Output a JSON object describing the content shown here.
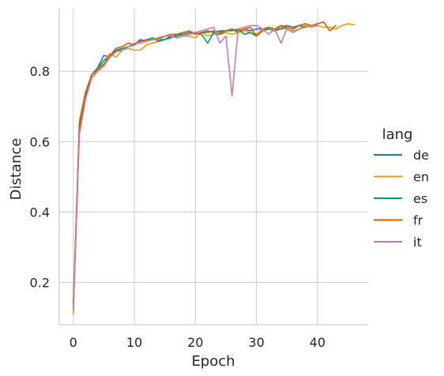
{
  "chart_data": {
    "type": "line",
    "xlabel": "Epoch",
    "ylabel": "Distance",
    "xlim": [
      -2.3,
      48.3
    ],
    "ylim": [
      0.08,
      0.98
    ],
    "xticks": [
      0,
      10,
      20,
      30,
      40
    ],
    "yticks": [
      0.2,
      0.4,
      0.6,
      0.8
    ],
    "grid": true,
    "legend": {
      "title": "lang",
      "placement": "right"
    },
    "series": [
      {
        "name": "de",
        "color": "#1f77b4",
        "x": [
          0,
          1,
          2,
          3,
          4,
          5,
          6,
          7,
          8,
          9,
          10,
          11,
          12,
          13,
          14,
          15,
          16,
          17,
          18,
          19,
          20,
          21,
          22,
          23,
          24,
          25,
          26,
          27,
          28,
          29,
          30,
          31,
          32,
          33,
          34,
          35,
          36,
          37,
          38,
          39,
          40
        ],
        "y": [
          0.12,
          0.63,
          0.73,
          0.79,
          0.81,
          0.845,
          0.84,
          0.86,
          0.86,
          0.87,
          0.875,
          0.89,
          0.885,
          0.89,
          0.89,
          0.89,
          0.895,
          0.905,
          0.905,
          0.91,
          0.905,
          0.91,
          0.915,
          0.91,
          0.915,
          0.915,
          0.92,
          0.91,
          0.92,
          0.915,
          0.92,
          0.92,
          0.925,
          0.92,
          0.925,
          0.93,
          0.925,
          0.93,
          0.925,
          0.93,
          0.93
        ]
      },
      {
        "name": "en",
        "color": "#e69f00",
        "x": [
          0,
          1,
          2,
          3,
          4,
          5,
          6,
          7,
          8,
          9,
          10,
          11,
          12,
          13,
          14,
          15,
          16,
          17,
          18,
          19,
          20,
          21,
          22,
          23,
          24,
          25,
          26,
          27,
          28,
          29,
          30,
          31,
          32,
          33,
          34,
          35,
          36,
          37,
          38,
          39,
          40,
          41,
          42,
          43,
          44,
          45,
          46
        ],
        "y": [
          0.11,
          0.66,
          0.74,
          0.78,
          0.805,
          0.83,
          0.85,
          0.84,
          0.86,
          0.865,
          0.86,
          0.86,
          0.875,
          0.88,
          0.885,
          0.89,
          0.9,
          0.895,
          0.9,
          0.9,
          0.895,
          0.91,
          0.9,
          0.905,
          0.905,
          0.91,
          0.905,
          0.91,
          0.915,
          0.91,
          0.905,
          0.92,
          0.92,
          0.915,
          0.925,
          0.92,
          0.915,
          0.92,
          0.93,
          0.925,
          0.93,
          0.925,
          0.925,
          0.92,
          0.93,
          0.935,
          0.932
        ]
      },
      {
        "name": "es",
        "color": "#009e73",
        "x": [
          0,
          1,
          2,
          3,
          4,
          5,
          6,
          7,
          8,
          9,
          10,
          11,
          12,
          13,
          14,
          15,
          16,
          17,
          18,
          19,
          20,
          21,
          22,
          23,
          24,
          25,
          26,
          27,
          28,
          29,
          30,
          31,
          32,
          33,
          34,
          35,
          36,
          37,
          38,
          39,
          40
        ],
        "y": [
          0.13,
          0.64,
          0.73,
          0.79,
          0.81,
          0.83,
          0.84,
          0.86,
          0.865,
          0.87,
          0.875,
          0.885,
          0.89,
          0.895,
          0.885,
          0.89,
          0.9,
          0.9,
          0.905,
          0.91,
          0.91,
          0.905,
          0.88,
          0.91,
          0.905,
          0.915,
          0.915,
          0.92,
          0.905,
          0.91,
          0.9,
          0.915,
          0.92,
          0.915,
          0.92,
          0.925,
          0.92,
          0.93,
          0.925,
          0.93,
          0.93
        ]
      },
      {
        "name": "fr",
        "color": "#d55e00",
        "x": [
          0,
          1,
          2,
          3,
          4,
          5,
          6,
          7,
          8,
          9,
          10,
          11,
          12,
          13,
          14,
          15,
          16,
          17,
          18,
          19,
          20,
          21,
          22,
          23,
          24,
          25,
          26,
          27,
          28,
          29,
          30,
          31,
          32,
          33,
          34,
          35,
          36,
          37,
          38,
          39,
          40,
          41,
          42,
          43
        ],
        "y": [
          0.14,
          0.65,
          0.74,
          0.79,
          0.805,
          0.82,
          0.845,
          0.865,
          0.87,
          0.88,
          0.875,
          0.885,
          0.89,
          0.89,
          0.895,
          0.9,
          0.905,
          0.905,
          0.91,
          0.915,
          0.905,
          0.91,
          0.91,
          0.915,
          0.91,
          0.915,
          0.92,
          0.915,
          0.92,
          0.925,
          0.9,
          0.915,
          0.925,
          0.92,
          0.93,
          0.925,
          0.92,
          0.93,
          0.935,
          0.93,
          0.935,
          0.94,
          0.915,
          0.93
        ]
      },
      {
        "name": "it",
        "color": "#cc79a7",
        "x": [
          0,
          1,
          2,
          3,
          4,
          5,
          6,
          7,
          8,
          9,
          10,
          11,
          12,
          13,
          14,
          15,
          16,
          17,
          18,
          19,
          20,
          21,
          22,
          23,
          24,
          25,
          26,
          27,
          28,
          29,
          30,
          31,
          32,
          33,
          34,
          35,
          36,
          37,
          38,
          39,
          40
        ],
        "y": [
          0.12,
          0.62,
          0.72,
          0.78,
          0.8,
          0.815,
          0.84,
          0.855,
          0.86,
          0.87,
          0.88,
          0.88,
          0.885,
          0.89,
          0.89,
          0.9,
          0.9,
          0.895,
          0.9,
          0.905,
          0.91,
          0.915,
          0.92,
          0.925,
          0.88,
          0.9,
          0.73,
          0.92,
          0.925,
          0.93,
          0.93,
          0.92,
          0.905,
          0.92,
          0.88,
          0.92,
          0.91,
          0.92,
          0.925,
          0.93,
          0.93
        ]
      }
    ]
  }
}
